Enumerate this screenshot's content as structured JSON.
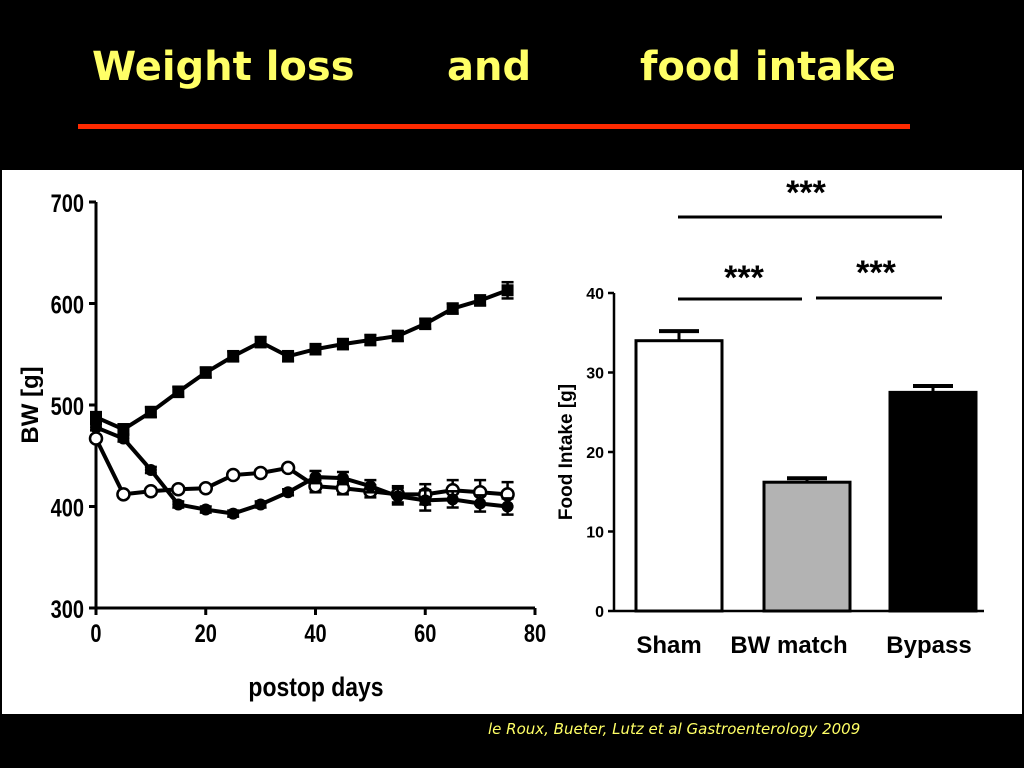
{
  "slide": {
    "title_parts": [
      "Weight loss",
      "and",
      "food intake"
    ],
    "citation": "le Roux, Bueter, Lutz et al Gastroenterology 2009",
    "colors": {
      "background": "#000000",
      "title": "#ffff66",
      "rule": "#ff2a00"
    }
  },
  "chart_data": [
    {
      "type": "line",
      "xlabel": "postop days",
      "ylabel": "BW [g]",
      "xlim": [
        0,
        80
      ],
      "ylim": [
        300,
        700
      ],
      "xticks": [
        0,
        20,
        40,
        60,
        80
      ],
      "yticks": [
        300,
        400,
        500,
        600,
        700
      ],
      "grid": false,
      "series": [
        {
          "marker": "filled-square",
          "x": [
            0,
            5,
            10,
            15,
            20,
            25,
            30,
            35,
            40,
            45,
            50,
            55,
            60,
            65,
            70,
            75
          ],
          "y": [
            488,
            476,
            493,
            513,
            532,
            548,
            562,
            548,
            555,
            560,
            564,
            568,
            580,
            595,
            603,
            613
          ],
          "err": [
            5,
            5,
            5,
            5,
            5,
            5,
            5,
            5,
            5,
            5,
            5,
            5,
            5,
            5,
            5,
            8
          ]
        },
        {
          "marker": "open-circle",
          "x": [
            0,
            5,
            10,
            15,
            20,
            25,
            30,
            35,
            40,
            45,
            50,
            55,
            60,
            65,
            70,
            75
          ],
          "y": [
            467,
            412,
            415,
            417,
            418,
            431,
            433,
            438,
            420,
            418,
            415,
            412,
            412,
            416,
            414,
            412
          ],
          "err": [
            3,
            3,
            3,
            3,
            3,
            3,
            3,
            3,
            6,
            6,
            6,
            8,
            10,
            10,
            12,
            12
          ]
        },
        {
          "marker": "filled-circle",
          "x": [
            0,
            5,
            10,
            15,
            20,
            25,
            30,
            35,
            40,
            45,
            50,
            55,
            60,
            65,
            70,
            75
          ],
          "y": [
            478,
            467,
            436,
            402,
            397,
            393,
            402,
            414,
            429,
            428,
            420,
            410,
            406,
            407,
            403,
            400
          ],
          "err": [
            3,
            3,
            3,
            3,
            3,
            3,
            3,
            3,
            6,
            6,
            6,
            8,
            10,
            8,
            8,
            8
          ]
        }
      ]
    },
    {
      "type": "bar",
      "ylabel": "Food Intake [g]",
      "ylim": [
        0,
        40
      ],
      "yticks": [
        0,
        10,
        20,
        30,
        40
      ],
      "categories": [
        "Sham",
        "BW match",
        "Bypass"
      ],
      "values": [
        34,
        16.2,
        27.5
      ],
      "errors": [
        1.2,
        0.5,
        0.8
      ],
      "bar_colors": [
        "#ffffff",
        "#b3b3b3",
        "#000000"
      ],
      "significance": [
        {
          "between": [
            "Sham",
            "Bypass"
          ],
          "label": "***"
        },
        {
          "between": [
            "Sham",
            "BW match"
          ],
          "label": "***"
        },
        {
          "between": [
            "BW match",
            "Bypass"
          ],
          "label": "***"
        }
      ]
    }
  ]
}
